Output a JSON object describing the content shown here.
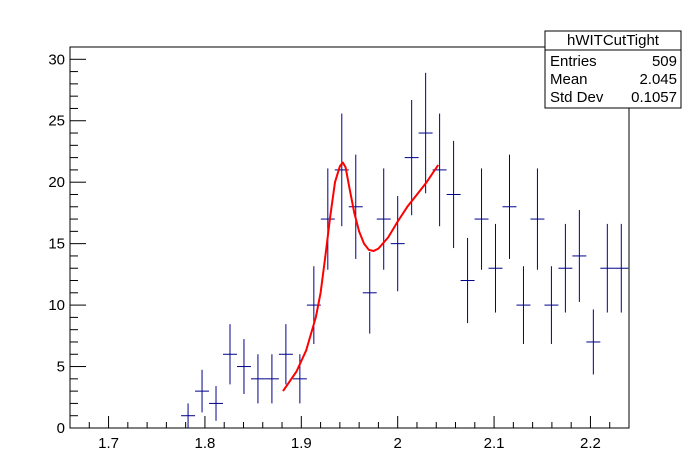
{
  "chart_data": {
    "type": "scatter",
    "title": "",
    "xlabel": "",
    "ylabel": "",
    "xlim": [
      1.66,
      2.24
    ],
    "ylim": [
      0,
      31
    ],
    "grid": false,
    "x_ticks": [
      1.7,
      1.8,
      1.9,
      2.0,
      2.1,
      2.2
    ],
    "x_tick_labels": [
      "1.7",
      "1.8",
      "1.9",
      "2",
      "2.1",
      "2.2"
    ],
    "y_ticks": [
      0,
      5,
      10,
      15,
      20,
      25,
      30
    ],
    "y_tick_labels": [
      "0",
      "5",
      "10",
      "15",
      "20",
      "25",
      "30"
    ],
    "bin_width": 0.0145,
    "histogram": {
      "color": "#00008b",
      "x": [
        1.7825,
        1.797,
        1.8115,
        1.826,
        1.8405,
        1.855,
        1.8695,
        1.884,
        1.8985,
        1.913,
        1.9275,
        1.942,
        1.9565,
        1.971,
        1.9855,
        2.0,
        2.0145,
        2.029,
        2.0435,
        2.058,
        2.0725,
        2.087,
        2.1015,
        2.116,
        2.1305,
        2.145,
        2.1595,
        2.174,
        2.1885,
        2.203,
        2.2175,
        2.232
      ],
      "y": [
        1,
        3,
        2,
        6,
        5,
        4,
        4,
        6,
        4,
        10,
        17,
        21,
        18,
        11,
        17,
        15,
        22,
        24,
        21,
        19,
        12,
        17,
        13,
        18,
        10,
        17,
        10,
        13,
        14,
        7,
        13,
        13
      ]
    },
    "fit": {
      "color": "#ff0000",
      "x": [
        1.881,
        1.895,
        1.905,
        1.915,
        1.92,
        1.925,
        1.93,
        1.935,
        1.94,
        1.943,
        1.946,
        1.95,
        1.955,
        1.96,
        1.965,
        1.97,
        1.975,
        1.98,
        1.99,
        2.0,
        2.01,
        2.02,
        2.03,
        2.042
      ],
      "y": [
        3.0,
        4.6,
        6.3,
        9.0,
        11.0,
        14.0,
        17.2,
        20.0,
        21.3,
        21.6,
        21.2,
        19.5,
        17.5,
        16.0,
        15.0,
        14.5,
        14.4,
        14.6,
        15.5,
        16.8,
        18.0,
        19.0,
        20.0,
        21.4
      ]
    },
    "stats_box": {
      "title": "hWITCutTight",
      "rows": [
        {
          "label": "Entries",
          "value": "509"
        },
        {
          "label": "Mean",
          "value": "2.045"
        },
        {
          "label": "Std Dev",
          "value": "0.1057"
        }
      ]
    }
  }
}
